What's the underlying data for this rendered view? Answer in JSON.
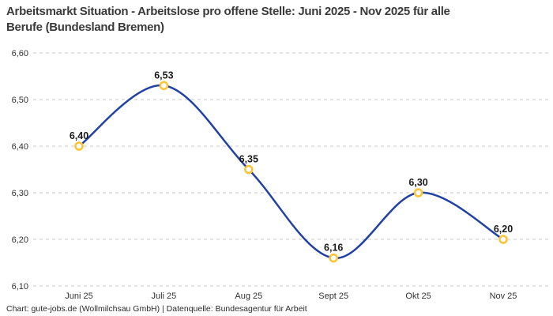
{
  "chart_data": {
    "type": "line",
    "title": "Arbeitsmarkt Situation - Arbeitslose pro offene Stelle: Juni 2025 - Nov 2025 für alle\nBerufe (Bundesland Bremen)",
    "categories": [
      "Juni 25",
      "Juli 25",
      "Aug 25",
      "Sept 25",
      "Okt 25",
      "Nov 25"
    ],
    "values": [
      6.4,
      6.53,
      6.35,
      6.16,
      6.3,
      6.2
    ],
    "point_labels": [
      "6,40",
      "6,53",
      "6,35",
      "6,16",
      "6,30",
      "6,20"
    ],
    "y_ticks": [
      {
        "value": 6.6,
        "label": "6,60"
      },
      {
        "value": 6.5,
        "label": "6,50"
      },
      {
        "value": 6.4,
        "label": "6,40"
      },
      {
        "value": 6.3,
        "label": "6,30"
      },
      {
        "value": 6.2,
        "label": "6,20"
      },
      {
        "value": 6.1,
        "label": "6,10"
      }
    ],
    "ylim": [
      6.1,
      6.6
    ],
    "xlabel": "",
    "ylabel": "",
    "grid": "horizontal-dashed",
    "legend": "none",
    "curve": "smooth-spline",
    "style": {
      "line_color": "#2241a5",
      "marker_stroke": "#fcc434",
      "marker_fill": "#ffffff",
      "grid_color": "#c9c9c9",
      "tick_color": "#333333",
      "point_label_color": "#1a1a1a",
      "title_color": "#3a3a3a"
    }
  },
  "footer": {
    "credit": "Chart: gute-jobs.de (Wollmilchsau GmbH) | Datenquelle: Bundesagentur für Arbeit"
  }
}
